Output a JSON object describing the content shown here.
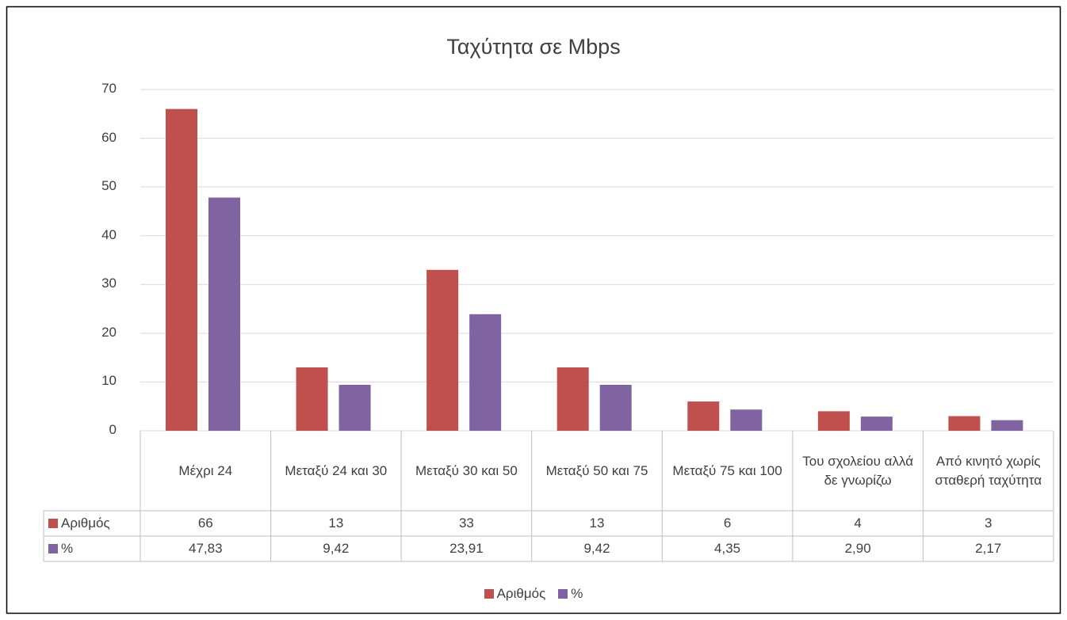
{
  "chart_data": {
    "type": "bar",
    "title": "Ταχύτητα σε Mbps",
    "categories": [
      "Μέχρι 24",
      "Μεταξύ 24 και 30",
      "Μεταξύ 30 και 50",
      "Μεταξύ 50 και 75",
      "Μεταξύ 75 και 100",
      "Του σχολείου αλλά δε γνωρίζω",
      "Από κινητό χωρίς σταθερή ταχύτητα"
    ],
    "series": [
      {
        "name": "Αριθμός",
        "color": "#c0504d",
        "values": [
          66,
          13,
          33,
          13,
          6,
          4,
          3
        ]
      },
      {
        "name": "%",
        "color": "#8064a2",
        "values": [
          47.83,
          9.42,
          23.91,
          9.42,
          4.35,
          2.9,
          2.17
        ],
        "value_labels": [
          "47,83",
          "9,42",
          "23,91",
          "9,42",
          "4,35",
          "2,90",
          "2,17"
        ]
      }
    ],
    "ylim": [
      0,
      70
    ],
    "yticks": [
      0,
      10,
      20,
      30,
      40,
      50,
      60,
      70
    ],
    "grid": true,
    "legend": "bottom"
  }
}
